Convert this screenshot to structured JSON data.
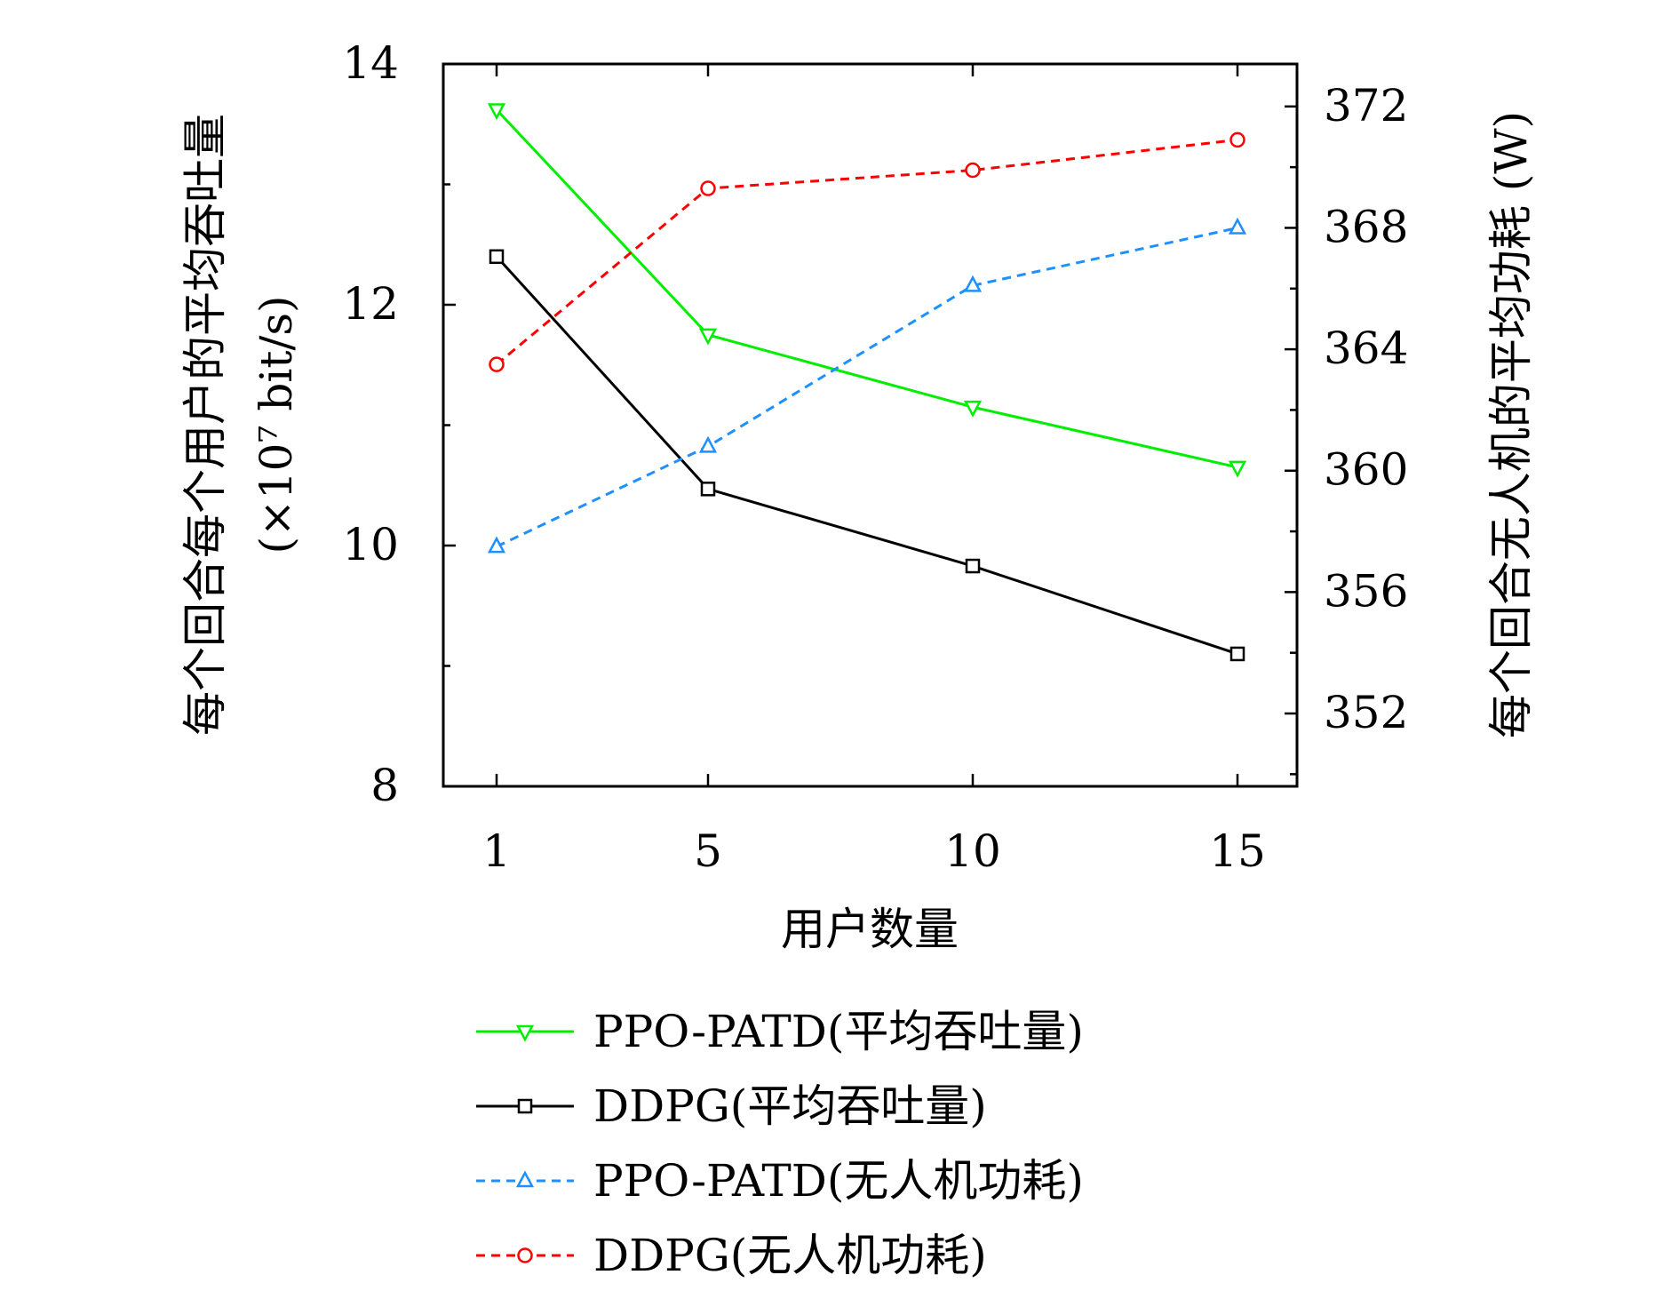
{
  "chart_data": {
    "type": "line",
    "xlabel": "用户数量",
    "y_left_label": "每个回合每个用户的平均吞吐量",
    "y_left_unit": "(×10⁷ bit/s)",
    "y_right_label": "每个回合无人机的平均功耗 (W)",
    "x": [
      1,
      5,
      10,
      15
    ],
    "x_ticks": [
      "1",
      "5",
      "10",
      "15"
    ],
    "y_left_ticks": [
      "8",
      "10",
      "12",
      "14"
    ],
    "y_right_ticks": [
      "352",
      "356",
      "360",
      "364",
      "368",
      "372"
    ],
    "y_left_range": [
      8,
      14
    ],
    "y_right_range": [
      349.6,
      373.4
    ],
    "grid": false,
    "legend_position": "bottom",
    "series": [
      {
        "name": "PPO-PATD(平均吞吐量)",
        "axis": "left",
        "values": [
          13.62,
          11.75,
          11.15,
          10.65
        ],
        "color": "#00ee00",
        "style": "solid",
        "marker": "triangle-down"
      },
      {
        "name": "DDPG(平均吞吐量)",
        "axis": "left",
        "values": [
          12.4,
          10.47,
          9.83,
          9.1
        ],
        "color": "#000000",
        "style": "solid",
        "marker": "square"
      },
      {
        "name": "PPO-PATD(无人机功耗)",
        "axis": "right",
        "values": [
          357.5,
          360.8,
          366.1,
          368.0
        ],
        "color": "#1e90ff",
        "style": "dashed",
        "marker": "triangle-up"
      },
      {
        "name": "DDPG(无人机功耗)",
        "axis": "right",
        "values": [
          363.5,
          369.3,
          369.9,
          370.9
        ],
        "color": "#ff0000",
        "style": "dashed",
        "marker": "circle"
      }
    ]
  }
}
